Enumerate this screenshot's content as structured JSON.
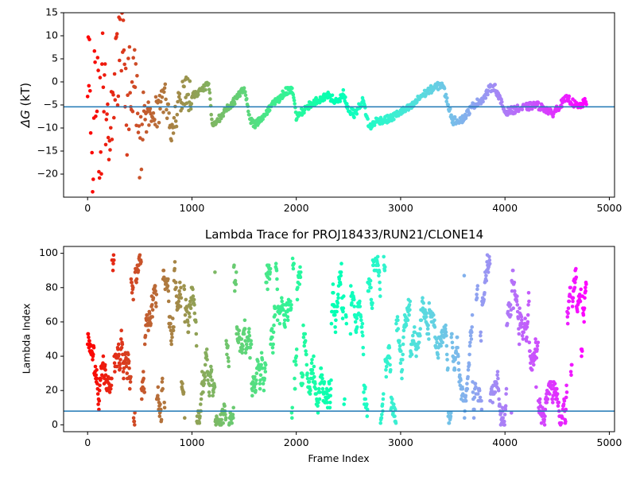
{
  "chart_data": [
    {
      "type": "scatter",
      "title": "",
      "xlabel": "",
      "ylabel_prefix": "ΔG",
      "ylabel_unit": " (kT)",
      "xlim": [
        -230,
        5050
      ],
      "ylim": [
        -25,
        15
      ],
      "xticks": [
        0,
        1000,
        2000,
        3000,
        4000,
        5000
      ],
      "yticks": [
        -20,
        -15,
        -10,
        -5,
        0,
        5,
        10,
        15
      ],
      "xtick_labels": [
        "0",
        "1000",
        "2000",
        "3000",
        "4000",
        "5000"
      ],
      "ytick_labels": [
        "−20",
        "−15",
        "−10",
        "−5",
        "0",
        "5",
        "10",
        "15"
      ],
      "hline": -5.4,
      "grid": false,
      "colormap": "rainbow",
      "n_frames": 4780,
      "trace_anchors": [
        [
          0,
          10
        ],
        [
          40,
          -20
        ],
        [
          80,
          5
        ],
        [
          120,
          -10
        ],
        [
          160,
          0
        ],
        [
          200,
          -15
        ],
        [
          260,
          -2
        ],
        [
          320,
          10
        ],
        [
          380,
          -6
        ],
        [
          440,
          2
        ],
        [
          500,
          -12
        ],
        [
          560,
          -8
        ],
        [
          620,
          -5
        ],
        [
          680,
          -7
        ],
        [
          740,
          -3
        ],
        [
          800,
          -10
        ],
        [
          860,
          -6
        ],
        [
          920,
          -2
        ],
        [
          980,
          -3
        ],
        [
          1040,
          -2.5
        ],
        [
          1100,
          -1.5
        ],
        [
          1160,
          -0.5
        ],
        [
          1200,
          -10
        ],
        [
          1260,
          -8
        ],
        [
          1320,
          -6
        ],
        [
          1380,
          -5
        ],
        [
          1440,
          -3
        ],
        [
          1500,
          -1.5
        ],
        [
          1560,
          -8
        ],
        [
          1600,
          -9.5
        ],
        [
          1680,
          -7.5
        ],
        [
          1760,
          -5
        ],
        [
          1840,
          -3.5
        ],
        [
          1900,
          -2
        ],
        [
          1960,
          -2
        ],
        [
          2000,
          -7.5
        ],
        [
          2100,
          -5.5
        ],
        [
          2200,
          -4
        ],
        [
          2300,
          -3
        ],
        [
          2400,
          -4.5
        ],
        [
          2450,
          -2.5
        ],
        [
          2500,
          -6
        ],
        [
          2560,
          -7
        ],
        [
          2640,
          -4
        ],
        [
          2700,
          -10
        ],
        [
          2760,
          -8.5
        ],
        [
          2900,
          -8
        ],
        [
          3000,
          -6.5
        ],
        [
          3100,
          -5.5
        ],
        [
          3200,
          -3
        ],
        [
          3300,
          -1.5
        ],
        [
          3400,
          -0.5
        ],
        [
          3500,
          -8.5
        ],
        [
          3600,
          -8
        ],
        [
          3700,
          -5
        ],
        [
          3800,
          -3.5
        ],
        [
          3850,
          -1.5
        ],
        [
          3900,
          -1
        ],
        [
          4000,
          -6.5
        ],
        [
          4100,
          -6
        ],
        [
          4200,
          -5.5
        ],
        [
          4300,
          -5
        ],
        [
          4400,
          -6
        ],
        [
          4450,
          -7
        ],
        [
          4550,
          -4.5
        ],
        [
          4600,
          -3.5
        ],
        [
          4700,
          -5.5
        ],
        [
          4780,
          -4.2
        ]
      ]
    },
    {
      "type": "scatter",
      "title": "Lambda Trace for PROJ18433/RUN21/CLONE14",
      "xlabel": "Frame Index",
      "ylabel": "Lambda Index",
      "xlim": [
        -230,
        5050
      ],
      "ylim": [
        -4,
        104
      ],
      "xticks": [
        0,
        1000,
        2000,
        3000,
        4000,
        5000
      ],
      "yticks": [
        0,
        20,
        40,
        60,
        80,
        100
      ],
      "xtick_labels": [
        "0",
        "1000",
        "2000",
        "3000",
        "4000",
        "5000"
      ],
      "ytick_labels": [
        "0",
        "20",
        "40",
        "60",
        "80",
        "100"
      ],
      "hline": 8,
      "grid": false,
      "colormap": "rainbow",
      "n_frames": 4780,
      "lambda_range": [
        0,
        99
      ]
    }
  ],
  "colors": {
    "hline": "#1f77b4",
    "axis": "#000000"
  }
}
